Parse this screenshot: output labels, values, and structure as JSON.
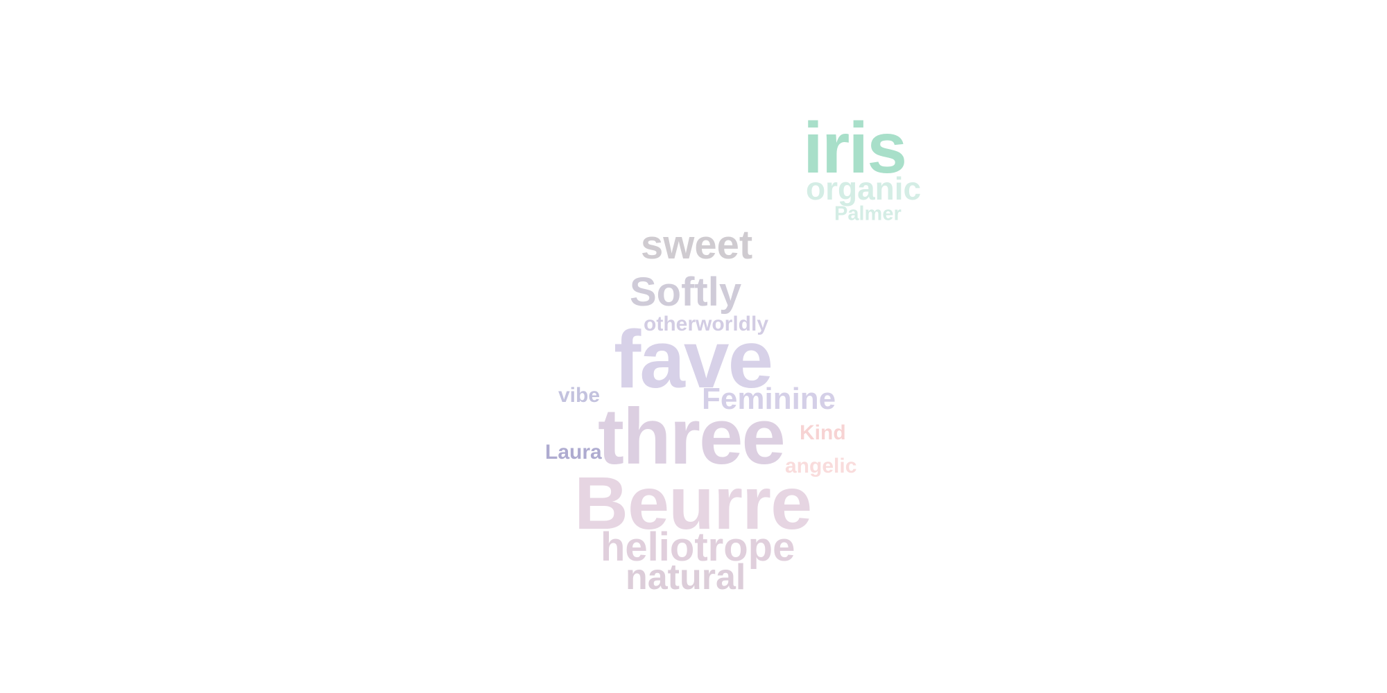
{
  "words": {
    "iris": {
      "text": "iris",
      "color": "#a8dfc9"
    },
    "organic": {
      "text": "organic",
      "color": "#d4ede5"
    },
    "palmer": {
      "text": "Palmer",
      "color": "#d4ede5"
    },
    "sweet": {
      "text": "sweet",
      "color": "#cfcbd0"
    },
    "softly": {
      "text": "Softly",
      "color": "#cfcbd8"
    },
    "otherworldly": {
      "text": "otherworldly",
      "color": "#d2cce3"
    },
    "fave": {
      "text": "fave",
      "color": "#d7d1e8"
    },
    "vibe": {
      "text": "vibe",
      "color": "#c3c2de"
    },
    "feminine": {
      "text": "Feminine",
      "color": "#d4cfe7"
    },
    "three": {
      "text": "three",
      "color": "#dccfe1"
    },
    "kind": {
      "text": "Kind",
      "color": "#f7d3d3"
    },
    "laura": {
      "text": "Laura",
      "color": "#aeabd0"
    },
    "angelic": {
      "text": "angelic",
      "color": "#f9dcdc"
    },
    "beurre": {
      "text": "Beurre",
      "color": "#e6d5e2"
    },
    "heliotrope": {
      "text": "heliotrope",
      "color": "#e0cfdc"
    },
    "natural": {
      "text": "natural",
      "color": "#dccdd9"
    }
  }
}
